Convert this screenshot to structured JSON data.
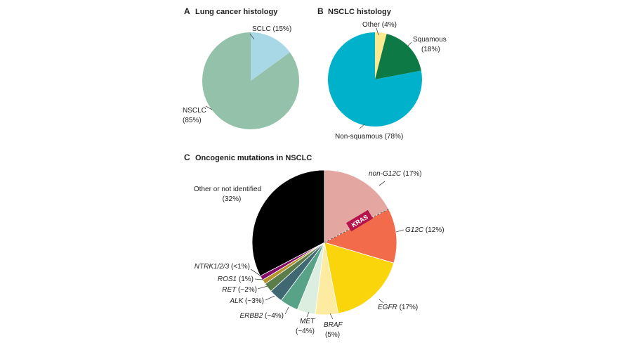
{
  "chart_data": [
    {
      "type": "pie",
      "panel": "A",
      "title": "Lung cancer histology",
      "colors": [
        "#a8d8e6",
        "#94c1a9"
      ],
      "slices": [
        {
          "label": "SCLC",
          "value_text": "(15%)",
          "value": 15
        },
        {
          "label": "NSCLC",
          "value_text": "(85%)",
          "value": 85
        }
      ]
    },
    {
      "type": "pie",
      "panel": "B",
      "title": "NSCLC histology",
      "colors": [
        "#f9ea92",
        "#0d7a45",
        "#00b1cc"
      ],
      "slices": [
        {
          "label": "Other",
          "value_text": "(4%)",
          "value": 4
        },
        {
          "label": "Squamous",
          "value_text": "(18%)",
          "value": 18
        },
        {
          "label": "Non-squamous",
          "value_text": "(78%)",
          "value": 78
        }
      ]
    },
    {
      "type": "pie",
      "panel": "C",
      "title": "Oncogenic mutations in NSCLC",
      "colors": [
        "#e4a6a1",
        "#f26b4a",
        "#fbd50b",
        "#fdeba1",
        "#dceee0",
        "#58a387",
        "#3f6873",
        "#5b7d4a",
        "#b7932c",
        "#840c6a"
      ],
      "group_label": "KRAS",
      "group_color": "#b5134b",
      "slices": [
        {
          "label": "non-G12C",
          "value_text": "(17%)",
          "value": 17
        },
        {
          "label": "G12C",
          "value_text": "(12%)",
          "value": 12
        },
        {
          "label": "EGFR",
          "value_text": "(17%)",
          "value": 17
        },
        {
          "label": "BRAF",
          "value_text": "(5%)",
          "value": 5
        },
        {
          "label": "MET",
          "value_text": "(~4%)",
          "value": 4
        },
        {
          "label": "ERBB2",
          "value_text": "(~4%)",
          "value": 4
        },
        {
          "label": "ALK",
          "value_text": "(~3%)",
          "value": 3
        },
        {
          "label": "RET",
          "value_text": "(~2%)",
          "value": 2
        },
        {
          "label": "ROS1",
          "value_text": "(1%)",
          "value": 1
        },
        {
          "label": "NTRK1/2/3",
          "value_text": "(<1%)",
          "value": 1
        },
        {
          "label": "Other or not identified",
          "value_text": "(32%)",
          "value": 32
        }
      ]
    }
  ]
}
